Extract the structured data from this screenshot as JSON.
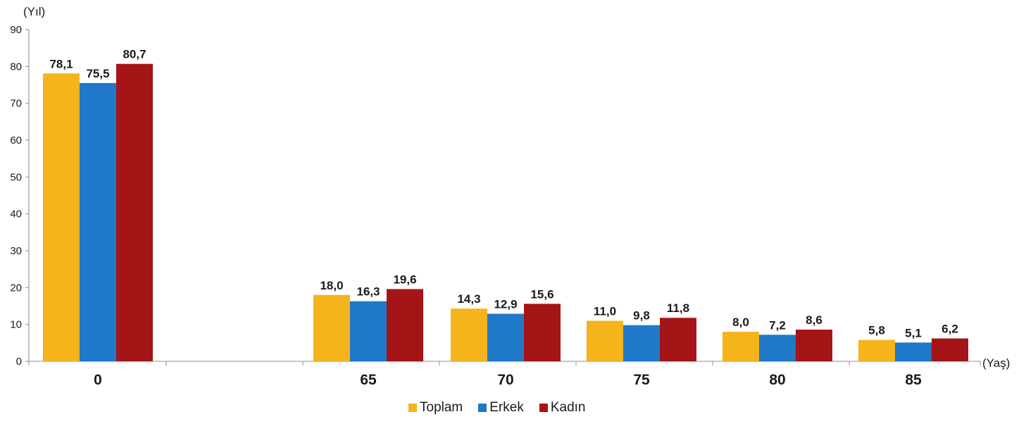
{
  "chart_data": {
    "type": "bar",
    "ylabel": "(Yıl)",
    "xlabel": "(Yaş)",
    "ylim": [
      0,
      90
    ],
    "yticks": [
      0,
      10,
      20,
      30,
      40,
      50,
      60,
      70,
      80,
      90
    ],
    "categories": [
      "0",
      "65",
      "70",
      "75",
      "80",
      "85"
    ],
    "series": [
      {
        "name": "Toplam",
        "color": "#F5B31C",
        "values": [
          78.1,
          18.0,
          14.3,
          11.0,
          8.0,
          5.8
        ],
        "labels": [
          "78,1",
          "18,0",
          "14,3",
          "11,0",
          "8,0",
          "5,8"
        ]
      },
      {
        "name": "Erkek",
        "color": "#1F78C8",
        "values": [
          75.5,
          16.3,
          12.9,
          9.8,
          7.2,
          5.1
        ],
        "labels": [
          "75,5",
          "16,3",
          "12,9",
          "9,8",
          "7,2",
          "5,1"
        ]
      },
      {
        "name": "Kadın",
        "color": "#A51417",
        "values": [
          80.7,
          19.6,
          15.6,
          11.8,
          8.6,
          6.2
        ],
        "labels": [
          "80,7",
          "19,6",
          "15,6",
          "11,8",
          "8,6",
          "6,2"
        ]
      }
    ],
    "legend_position": "bottom",
    "grid": false
  }
}
